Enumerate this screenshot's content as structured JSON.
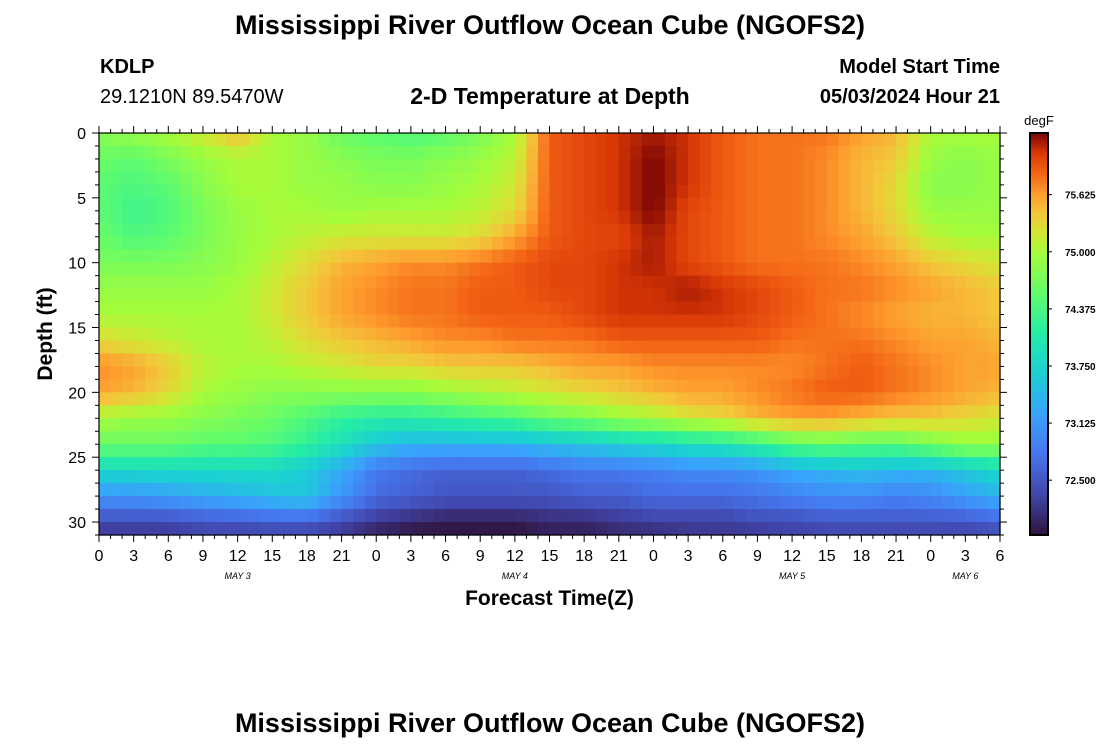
{
  "page": {
    "title": "Mississippi River Outflow Ocean Cube (NGOFS2)",
    "station": "KDLP",
    "coords": "29.1210N  89.5470W",
    "subtitle": "2-D Temperature at Depth",
    "model_start_label": "Model Start Time",
    "model_start_value": "05/03/2024 Hour 21",
    "footer_title": "Mississippi River Outflow Ocean Cube (NGOFS2)"
  },
  "chart_data": {
    "type": "heatmap",
    "xlabel": "Forecast Time(Z)",
    "ylabel": "Depth (ft)",
    "x_tick_labels": [
      "0",
      "3",
      "6",
      "9",
      "12",
      "15",
      "18",
      "21",
      "0",
      "3",
      "6",
      "9",
      "12",
      "15",
      "18",
      "21",
      "0",
      "3",
      "6",
      "9",
      "12",
      "15",
      "18",
      "21",
      "0",
      "3",
      "6"
    ],
    "day_labels": [
      {
        "label": "MAY 3",
        "hours_from_start": 12
      },
      {
        "label": "MAY 4",
        "hours_from_start": 36
      },
      {
        "label": "MAY 5",
        "hours_from_start": 60
      },
      {
        "label": "MAY 6",
        "hours_from_start": 75
      }
    ],
    "x_range_hours": [
      0,
      78
    ],
    "y_ticks": [
      0,
      5,
      10,
      15,
      20,
      25,
      30
    ],
    "y_range": [
      0,
      31
    ],
    "y_inverted": true,
    "colorbar": {
      "unit": "degF",
      "ticks": [
        "75.625",
        "75.000",
        "74.375",
        "73.750",
        "73.125",
        "72.500"
      ],
      "tick_values": [
        75.625,
        75.0,
        74.375,
        73.75,
        73.125,
        72.5
      ],
      "range": [
        71.9,
        76.3
      ]
    },
    "columns_hours": [
      0,
      3,
      6,
      9,
      12,
      15,
      18,
      21,
      24,
      27,
      30,
      33,
      36,
      39,
      42,
      45,
      48,
      51,
      54,
      57,
      60,
      63,
      66,
      69,
      72,
      75,
      78
    ],
    "rows_depth_ft": [
      0,
      2,
      4,
      6,
      8,
      10,
      12,
      14,
      16,
      18,
      20,
      22,
      24,
      26,
      28,
      30,
      31
    ],
    "values": [
      [
        74.8,
        74.9,
        75.0,
        75.2,
        75.5,
        75.0,
        74.9,
        74.6,
        74.5,
        74.4,
        74.5,
        74.7,
        75.0,
        75.9,
        76.0,
        76.1,
        76.2,
        76.1,
        75.9,
        75.8,
        75.8,
        75.8,
        75.6,
        75.5,
        75.0,
        75.0,
        75.0
      ],
      [
        74.6,
        74.5,
        74.7,
        74.9,
        75.0,
        75.0,
        74.9,
        74.8,
        74.7,
        74.7,
        74.8,
        74.9,
        75.1,
        75.9,
        76.0,
        76.1,
        76.3,
        76.1,
        75.9,
        75.8,
        75.8,
        75.7,
        75.5,
        75.4,
        74.9,
        74.8,
        74.9
      ],
      [
        74.5,
        74.4,
        74.5,
        74.8,
        75.0,
        75.0,
        74.9,
        74.9,
        74.8,
        74.8,
        74.9,
        75.0,
        75.2,
        75.9,
        76.0,
        76.1,
        76.3,
        76.1,
        75.9,
        75.8,
        75.8,
        75.7,
        75.5,
        75.3,
        74.8,
        74.8,
        74.9
      ],
      [
        74.5,
        74.3,
        74.4,
        74.7,
        74.9,
        75.0,
        75.0,
        74.9,
        75.0,
        75.0,
        75.0,
        75.1,
        75.3,
        75.9,
        76.0,
        76.1,
        76.3,
        76.0,
        75.9,
        75.8,
        75.8,
        75.7,
        75.5,
        75.3,
        74.9,
        74.9,
        74.9
      ],
      [
        74.6,
        74.4,
        74.5,
        74.7,
        74.9,
        75.0,
        75.1,
        75.2,
        75.2,
        75.2,
        75.2,
        75.3,
        75.6,
        75.9,
        76.0,
        76.0,
        76.2,
        76.0,
        75.9,
        75.8,
        75.8,
        75.7,
        75.6,
        75.4,
        75.1,
        75.0,
        75.0
      ],
      [
        74.7,
        74.7,
        74.7,
        74.8,
        74.9,
        75.1,
        75.3,
        75.5,
        75.6,
        75.7,
        75.7,
        75.8,
        75.9,
        76.0,
        76.0,
        76.1,
        76.2,
        76.0,
        75.9,
        75.8,
        75.8,
        75.8,
        75.7,
        75.6,
        75.4,
        75.3,
        75.2
      ],
      [
        74.9,
        74.9,
        74.9,
        74.9,
        75.0,
        75.2,
        75.4,
        75.6,
        75.7,
        75.8,
        75.8,
        75.9,
        75.9,
        76.0,
        76.0,
        76.1,
        76.1,
        76.2,
        76.1,
        76.0,
        75.9,
        75.8,
        75.8,
        75.7,
        75.6,
        75.5,
        75.4
      ],
      [
        75.0,
        75.0,
        75.0,
        75.0,
        75.0,
        75.2,
        75.4,
        75.6,
        75.7,
        75.8,
        75.8,
        75.9,
        75.9,
        75.9,
        76.0,
        76.1,
        76.1,
        76.1,
        76.1,
        76.0,
        75.9,
        75.8,
        75.7,
        75.6,
        75.5,
        75.5,
        75.4
      ],
      [
        75.3,
        75.2,
        75.1,
        75.0,
        75.0,
        75.1,
        75.3,
        75.4,
        75.5,
        75.6,
        75.7,
        75.7,
        75.8,
        75.8,
        75.8,
        75.9,
        75.9,
        75.9,
        75.9,
        75.9,
        75.8,
        75.8,
        75.8,
        75.7,
        75.6,
        75.6,
        75.5
      ],
      [
        75.7,
        75.6,
        75.4,
        75.1,
        75.0,
        75.0,
        75.1,
        75.2,
        75.3,
        75.3,
        75.4,
        75.4,
        75.4,
        75.5,
        75.6,
        75.6,
        75.7,
        75.7,
        75.7,
        75.7,
        75.7,
        75.8,
        75.9,
        75.8,
        75.7,
        75.6,
        75.6
      ],
      [
        75.6,
        75.5,
        75.3,
        75.0,
        74.9,
        74.8,
        74.8,
        74.8,
        74.8,
        74.8,
        74.9,
        75.0,
        75.1,
        75.2,
        75.3,
        75.4,
        75.5,
        75.6,
        75.6,
        75.7,
        75.8,
        75.9,
        75.9,
        75.8,
        75.7,
        75.6,
        75.5
      ],
      [
        75.0,
        74.9,
        74.9,
        74.8,
        74.7,
        74.6,
        74.4,
        74.2,
        74.1,
        74.1,
        74.2,
        74.3,
        74.4,
        74.6,
        74.7,
        74.9,
        75.0,
        75.2,
        75.3,
        75.5,
        75.6,
        75.6,
        75.5,
        75.4,
        75.4,
        75.3,
        75.2
      ],
      [
        74.6,
        74.6,
        74.6,
        74.5,
        74.5,
        74.4,
        74.2,
        73.9,
        73.6,
        73.4,
        73.4,
        73.4,
        73.4,
        73.5,
        73.6,
        73.7,
        73.8,
        73.9,
        74.0,
        74.2,
        74.5,
        74.6,
        74.5,
        74.5,
        74.7,
        74.9,
        74.9
      ],
      [
        73.8,
        73.8,
        73.8,
        73.8,
        73.8,
        73.8,
        73.6,
        73.3,
        72.8,
        72.7,
        72.6,
        72.6,
        72.6,
        72.7,
        72.8,
        72.8,
        72.9,
        73.0,
        73.0,
        73.1,
        73.3,
        73.4,
        73.5,
        73.4,
        73.4,
        73.6,
        73.8
      ],
      [
        73.1,
        73.1,
        73.2,
        73.3,
        73.4,
        73.5,
        73.6,
        73.1,
        72.7,
        72.6,
        72.5,
        72.5,
        72.5,
        72.5,
        72.6,
        72.6,
        72.7,
        72.7,
        72.7,
        72.8,
        72.9,
        73.0,
        73.0,
        72.9,
        73.0,
        73.2,
        73.4
      ],
      [
        72.4,
        72.4,
        72.4,
        72.5,
        72.5,
        72.6,
        72.6,
        72.4,
        72.2,
        72.1,
        72.0,
        72.0,
        72.0,
        72.1,
        72.1,
        72.2,
        72.3,
        72.3,
        72.3,
        72.4,
        72.4,
        72.5,
        72.5,
        72.5,
        72.5,
        72.5,
        72.6
      ],
      [
        72.2,
        72.2,
        72.2,
        72.3,
        72.3,
        72.3,
        72.3,
        72.2,
        72.0,
        71.9,
        71.9,
        71.9,
        71.9,
        72.0,
        72.0,
        72.1,
        72.1,
        72.2,
        72.2,
        72.2,
        72.3,
        72.3,
        72.3,
        72.3,
        72.3,
        72.3,
        72.4
      ]
    ]
  }
}
